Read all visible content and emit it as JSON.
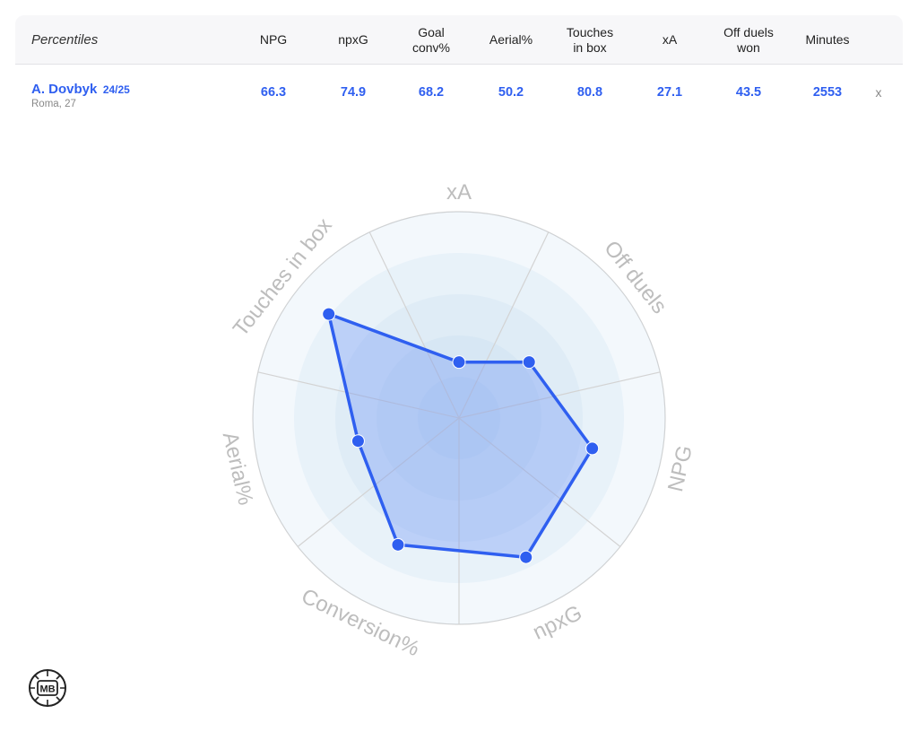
{
  "table": {
    "header_label": "Percentiles",
    "columns": [
      "NPG",
      "npxG",
      "Goal\nconv%",
      "Aerial%",
      "Touches\nin box",
      "xA",
      "Off duels\nwon",
      "Minutes"
    ],
    "player": {
      "name": "A. Dovbyk",
      "season": "24/25",
      "meta": "Roma, 27",
      "values": [
        "66.3",
        "74.9",
        "68.2",
        "50.2",
        "80.8",
        "27.1",
        "43.5",
        "2553"
      ],
      "remove_label": "x"
    }
  },
  "chart_data": {
    "type": "radar",
    "scale": [
      0,
      100
    ],
    "grid_rings": 5,
    "axes": [
      "xA",
      "Off duels",
      "NPG",
      "npxG",
      "Conversion%",
      "Aerial%",
      "Touches in box"
    ],
    "series": [
      {
        "name": "A. Dovbyk 24/25",
        "values": [
          27.1,
          43.5,
          66.3,
          74.9,
          68.2,
          50.2,
          80.8
        ]
      }
    ],
    "colors": {
      "series": "#2f5ff0",
      "fill": "rgba(100,140,245,0.33)",
      "grid": "#d3d3d3",
      "ring_fill": "#9fcbeb",
      "axis_label": "#bdbdbd"
    }
  },
  "logo": {
    "text": "MB"
  }
}
